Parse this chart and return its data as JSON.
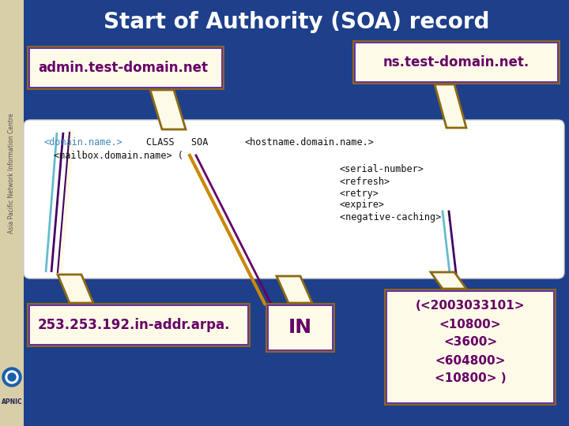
{
  "title": "Start of Authority (SOA) record",
  "title_color": "#ffffff",
  "title_fontsize": 20,
  "bg_color": "#1e3f8a",
  "sidebar_color": "#d8cfa8",
  "sidebar_text": "Asia Pacific Network Information Centre",
  "callout_admin_text": "admin.test-domain.net",
  "callout_ns_text": "ns.test-domain.net.",
  "callout_ip_text": "253.253.192.in-addr.arpa.",
  "callout_in_text": "IN",
  "callout_values_line1": "(<2003033101>",
  "callout_values_line2": "<10800>",
  "callout_values_line3": "<3600>",
  "callout_values_line4": "<604800>",
  "callout_values_line5": "<10800> )",
  "box_bg": "#fdfbe8",
  "box_border_outer": "#8b6914",
  "box_border_inner": "#6633aa",
  "callout_text_color": "#660066",
  "code_color": "#111111",
  "domain_link_color": "#4488bb",
  "apnic_logo_color": "#1a5faa",
  "sidebar_text_color": "#555555"
}
